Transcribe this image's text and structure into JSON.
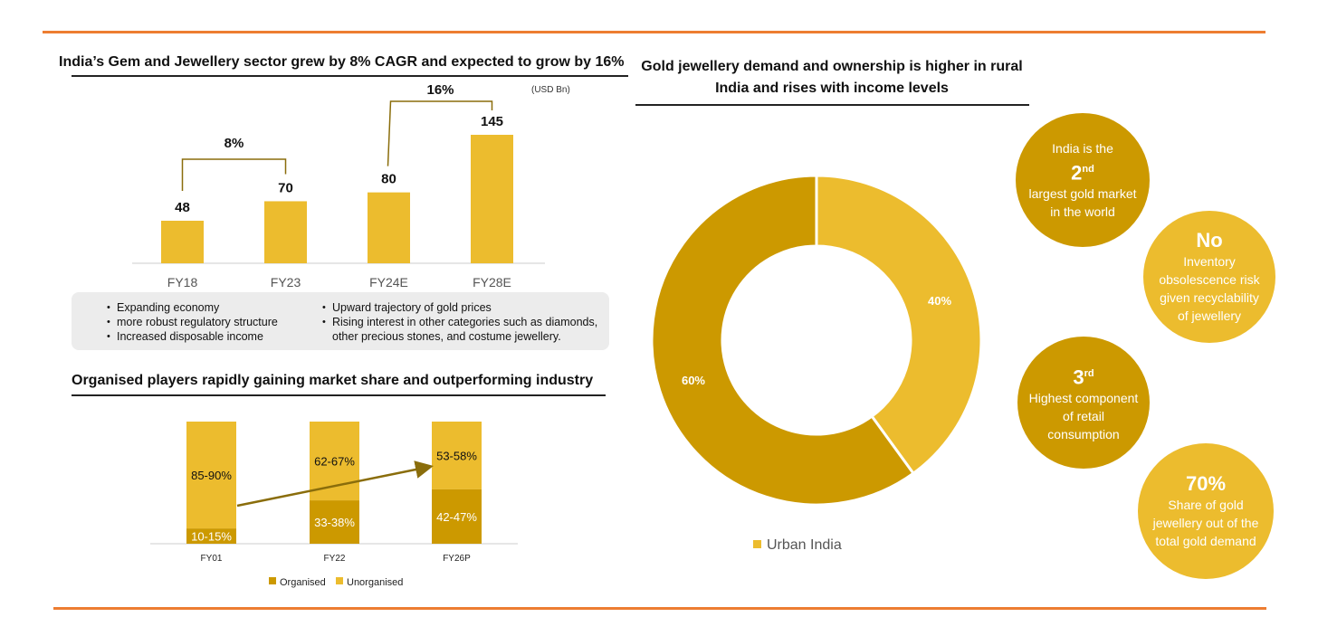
{
  "colors": {
    "accent_rule": "#ed7d31",
    "gold_light": "#ecbc2e",
    "gold_dark": "#cc9900",
    "bullets_bg": "#ececec"
  },
  "growth_chart": {
    "title": "India’s Gem and Jewellery sector grew by 8% CAGR and expected to grow by 16%",
    "unit": "(USD Bn)",
    "growth_labels": [
      "8%",
      "16%"
    ],
    "bullets_left": [
      "Expanding economy",
      "more robust regulatory structure",
      "Increased disposable income"
    ],
    "bullets_right": [
      "Upward trajectory of gold prices",
      "Rising interest in other categories such as diamonds,",
      "other precious stones, and costume jewellery."
    ]
  },
  "share_chart": {
    "title": "Organised players rapidly gaining market share and outperforming industry",
    "legend": [
      "Organised",
      "Unorganised"
    ]
  },
  "demand": {
    "title": "Gold jewellery demand and ownership is higher in rural India and rises with income levels",
    "legend_label": "Urban India"
  },
  "facts": {
    "f1": {
      "line1": "India is the",
      "big": "2",
      "sup": "nd",
      "line2": "largest gold market in the world"
    },
    "f2": {
      "big": "No",
      "line2": "Inventory obsolescence risk given recyclability of jewellery"
    },
    "f3": {
      "big": "3",
      "sup": "rd",
      "line2": "Highest component of retail consumption"
    },
    "f4": {
      "big": "70%",
      "line2": "Share of gold jewellery out of the total gold demand"
    }
  },
  "chart_data": [
    {
      "type": "bar",
      "title": "India’s Gem and Jewellery sector grew by 8% CAGR and expected to grow by 16%",
      "unit": "(USD Bn)",
      "categories": [
        "FY18",
        "FY23",
        "FY24E",
        "FY28E"
      ],
      "values": [
        48,
        70,
        80,
        145
      ],
      "annotations": [
        {
          "from": "FY18",
          "to": "FY23",
          "label": "8%"
        },
        {
          "from": "FY24E",
          "to": "FY28E",
          "label": "16%"
        }
      ]
    },
    {
      "type": "bar",
      "stacked": true,
      "title": "Organised players rapidly gaining market share and outperforming industry",
      "categories": [
        "FY01",
        "FY22",
        "FY26P"
      ],
      "series": [
        {
          "name": "Organised",
          "values": [
            12.5,
            35.5,
            44.5
          ],
          "labels": [
            "10-15%",
            "33-38%",
            "42-47%"
          ]
        },
        {
          "name": "Unorganised",
          "values": [
            87.5,
            64.5,
            55.5
          ],
          "labels": [
            "85-90%",
            "62-67%",
            "53-58%"
          ]
        }
      ]
    },
    {
      "type": "pie",
      "donut": true,
      "title": "Gold jewellery demand and ownership is higher in rural India and rises with income levels",
      "slices": [
        {
          "label": "40%",
          "value": 40
        },
        {
          "label": "60%",
          "value": 60
        }
      ],
      "legend": [
        "Urban India"
      ]
    }
  ]
}
